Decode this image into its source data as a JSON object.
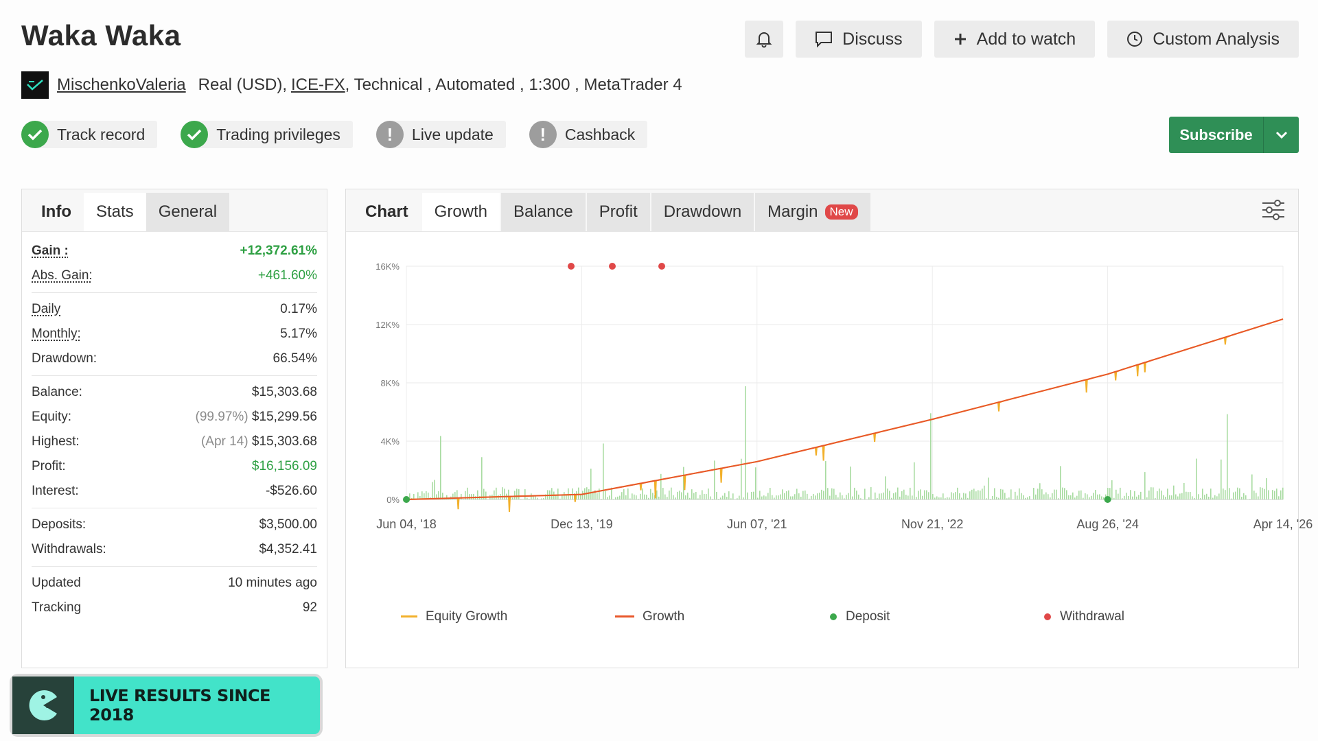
{
  "header": {
    "title": "Waka Waka",
    "actions": {
      "discuss": "Discuss",
      "add_watch": "Add to watch",
      "custom_analysis": "Custom Analysis"
    }
  },
  "author": {
    "name": "MischenkoValeria",
    "account_type": "Real (USD),",
    "broker": "ICE-FX",
    "details": " , Technical , Automated , 1:300 , MetaTrader 4"
  },
  "badges": [
    {
      "label": "Track record",
      "status": "ok"
    },
    {
      "label": "Trading privileges",
      "status": "ok"
    },
    {
      "label": "Live update",
      "status": "warn"
    },
    {
      "label": "Cashback",
      "status": "warn"
    }
  ],
  "subscribe": {
    "label": "Subscribe"
  },
  "info_tabs": [
    "Info",
    "Stats",
    "General"
  ],
  "stats": {
    "gain_label": "Gain :",
    "gain_value": "+12,372.61%",
    "abs_gain_label": "Abs. Gain:",
    "abs_gain_value": "+461.60%",
    "daily_label": "Daily",
    "daily_value": "0.17%",
    "monthly_label": "Monthly:",
    "monthly_value": "5.17%",
    "drawdown_label": "Drawdown:",
    "drawdown_value": "66.54%",
    "balance_label": "Balance:",
    "balance_value": "$15,303.68",
    "equity_label": "Equity:",
    "equity_pct": "(99.97%)",
    "equity_value": "$15,299.56",
    "highest_label": "Highest:",
    "highest_date": "(Apr 14)",
    "highest_value": "$15,303.68",
    "profit_label": "Profit:",
    "profit_value": "$16,156.09",
    "interest_label": "Interest:",
    "interest_value": "-$526.60",
    "deposits_label": "Deposits:",
    "deposits_value": "$3,500.00",
    "withdrawals_label": "Withdrawals:",
    "withdrawals_value": "$4,352.41",
    "updated_label": "Updated",
    "updated_value": "10 minutes ago",
    "tracking_label": "Tracking",
    "tracking_value": "92"
  },
  "chart_tabs": {
    "chart": "Chart",
    "growth": "Growth",
    "balance": "Balance",
    "profit": "Profit",
    "drawdown": "Drawdown",
    "margin": "Margin",
    "new_badge": "New"
  },
  "colors": {
    "growth": "#e8572a",
    "equity": "#f2b02a",
    "volume": "#a8dba1",
    "deposit": "#3ca84c",
    "withdrawal": "#e04848",
    "subscribe": "#2f8f56"
  },
  "chart_data": {
    "type": "line",
    "x": [
      "Jun 04, '18",
      "Dec 13, '19",
      "Jun 07, '21",
      "Nov 21, '22",
      "Aug 26, '24",
      "Apr 14, '26"
    ],
    "yticks": [
      "0%",
      "4K%",
      "8K%",
      "12K%",
      "16K%"
    ],
    "ylim": [
      0,
      16000
    ],
    "series": [
      {
        "name": "Growth",
        "values": [
          0,
          350,
          2600,
          5500,
          8600,
          12372
        ]
      },
      {
        "name": "Equity Growth",
        "values": [
          0,
          350,
          2600,
          5500,
          8600,
          12372
        ]
      }
    ],
    "deposits_x": [
      "Jun 04, '18",
      "Jul 20, '24"
    ],
    "withdrawals_x": [
      "Aug '19",
      "Jun '20",
      "Jan '21"
    ],
    "legend": [
      "Equity Growth",
      "Growth",
      "Deposit",
      "Withdrawal"
    ],
    "legend_position": "bottom"
  },
  "promo": {
    "text": "LIVE RESULTS SINCE 2018"
  }
}
